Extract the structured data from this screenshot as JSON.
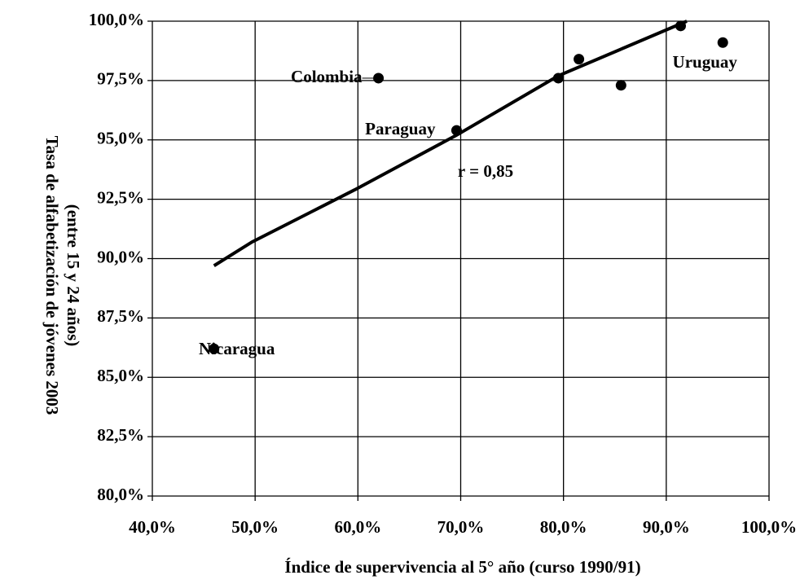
{
  "chart_data": {
    "type": "scatter",
    "x_label": "Índice de supervivencia al 5° año (curso 1990/91)",
    "y_label": [
      "Tasa de alfabetización de jóvenes 2003",
      "(entre 15 y 24 años)"
    ],
    "x": [
      46,
      62,
      69.6,
      79.5,
      81.5,
      85.6,
      91.4,
      95.5
    ],
    "values": [
      86.2,
      97.6,
      95.4,
      97.6,
      98.4,
      97.3,
      99.8,
      99.1
    ],
    "point_labels": [
      "Nicaragua",
      "Colombia",
      "Paraguay",
      null,
      null,
      null,
      null,
      "Uruguay"
    ],
    "color": "#000000",
    "trendline": {
      "x": [
        46,
        49.7,
        59.7,
        69.6,
        79.5,
        92
      ],
      "values": [
        89.7,
        90.7,
        92.9,
        95.2,
        97.7,
        100
      ]
    },
    "annotation": "r = 0,85",
    "xlim": [
      40,
      100
    ],
    "ylim": [
      80,
      100
    ],
    "xticks": [
      {
        "value": 40,
        "label": "40,0%"
      },
      {
        "value": 50,
        "label": "50,0%"
      },
      {
        "value": 60,
        "label": "60,0%"
      },
      {
        "value": 70,
        "label": "70,0%"
      },
      {
        "value": 80,
        "label": "80,0%"
      },
      {
        "value": 90,
        "label": "90,0%"
      },
      {
        "value": 100,
        "label": "100,0%"
      }
    ],
    "yticks": [
      {
        "value": 80,
        "label": "80,0%"
      },
      {
        "value": 82.5,
        "label": "82,5%"
      },
      {
        "value": 85,
        "label": "85,0%"
      },
      {
        "value": 87.5,
        "label": "87,5%"
      },
      {
        "value": 90,
        "label": "90,0%"
      },
      {
        "value": 92.5,
        "label": "92,5%"
      },
      {
        "value": 95,
        "label": "95,0%"
      },
      {
        "value": 97.5,
        "label": "97,5%"
      },
      {
        "value": 100,
        "label": "100,0%"
      }
    ],
    "grid": true
  }
}
